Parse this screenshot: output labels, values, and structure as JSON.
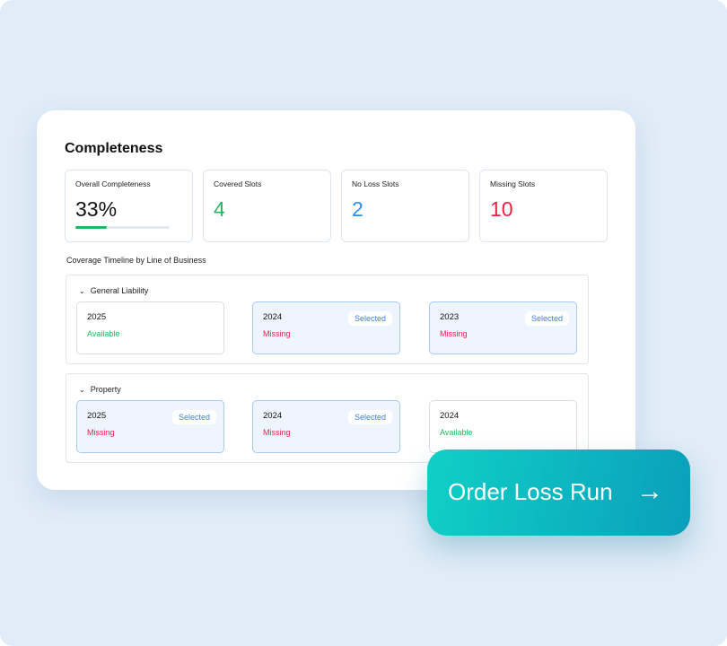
{
  "title": "Completeness",
  "stats": [
    {
      "label": "Overall Completeness",
      "value": "33%",
      "color": "#111111",
      "progress": 33
    },
    {
      "label": "Covered Slots",
      "value": "4",
      "color": "#22b861"
    },
    {
      "label": "No Loss Slots",
      "value": "2",
      "color": "#2f8ff0"
    },
    {
      "label": "Missing Slots",
      "value": "10",
      "color": "#ee1f45"
    }
  ],
  "timeline_label": "Coverage Timeline by Line of Business",
  "groups": [
    {
      "name": "General Liability",
      "slots": [
        {
          "year": "2025",
          "status": "Available",
          "selected": false
        },
        {
          "year": "2024",
          "status": "Missing",
          "selected": true,
          "badge": "Selected"
        },
        {
          "year": "2023",
          "status": "Missing",
          "selected": true,
          "badge": "Selected"
        }
      ]
    },
    {
      "name": "Property",
      "slots": [
        {
          "year": "2025",
          "status": "Missing",
          "selected": true,
          "badge": "Selected"
        },
        {
          "year": "2024",
          "status": "Missing",
          "selected": true,
          "badge": "Selected"
        },
        {
          "year": "2024",
          "status": "Available",
          "selected": false
        }
      ]
    }
  ],
  "cta": {
    "label": "Order Loss Run",
    "icon": "arrow-right-icon"
  },
  "colors": {
    "available": "#22b861",
    "missing": "#e8224d",
    "accent": "#0fbfc4"
  }
}
